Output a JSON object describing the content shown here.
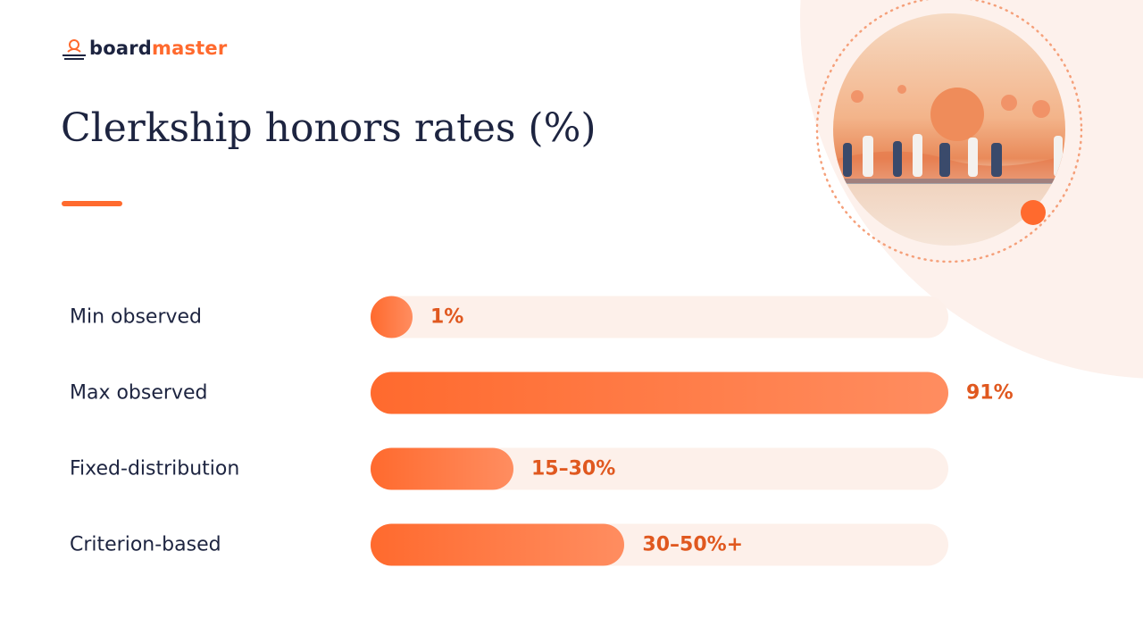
{
  "logo": {
    "first": "board",
    "second": "master"
  },
  "chart_data": {
    "type": "bar",
    "orientation": "horizontal",
    "title": "Clerkship honors rates (%)",
    "categories": [
      "Min observed",
      "Max observed",
      "Fixed-distribution",
      "Criterion-based"
    ],
    "values": [
      1,
      91,
      22.5,
      40
    ],
    "value_labels": [
      "1%",
      "91%",
      "15–30%",
      "30–50%+"
    ],
    "xlim": [
      0,
      91
    ],
    "color": "#ff6a2e",
    "track_color": "#fdf0ea",
    "label_color": "#e0581f"
  }
}
